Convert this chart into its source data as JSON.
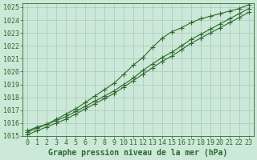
{
  "title": "Graphe pression niveau de la mer (hPa)",
  "x_values": [
    0,
    1,
    2,
    3,
    4,
    5,
    6,
    7,
    8,
    9,
    10,
    11,
    12,
    13,
    14,
    15,
    16,
    17,
    18,
    19,
    20,
    21,
    22,
    23
  ],
  "line1": [
    1015.4,
    1015.7,
    1015.9,
    1016.2,
    1016.5,
    1016.9,
    1017.3,
    1017.7,
    1018.1,
    1018.5,
    1019.0,
    1019.5,
    1020.1,
    1020.6,
    1021.1,
    1021.5,
    1022.0,
    1022.5,
    1022.9,
    1023.3,
    1023.7,
    1024.1,
    1024.5,
    1024.9
  ],
  "line2_marked": [
    1015.3,
    1015.6,
    1015.9,
    1016.3,
    1016.7,
    1017.1,
    1017.6,
    1018.1,
    1018.6,
    1019.1,
    1019.8,
    1020.5,
    1021.1,
    1021.9,
    1022.6,
    1023.1,
    1023.4,
    1023.8,
    1024.1,
    1024.3,
    1024.5,
    1024.7,
    1024.9,
    1025.2
  ],
  "line3": [
    1015.1,
    1015.4,
    1015.7,
    1016.0,
    1016.3,
    1016.7,
    1017.1,
    1017.5,
    1017.9,
    1018.3,
    1018.8,
    1019.3,
    1019.8,
    1020.3,
    1020.8,
    1021.2,
    1021.7,
    1022.2,
    1022.6,
    1023.0,
    1023.4,
    1023.8,
    1024.2,
    1024.6
  ],
  "line_color": "#2d6a2d",
  "bg_color": "#cce8d8",
  "grid_color": "#a8c8b8",
  "ylim": [
    1015,
    1025
  ],
  "ylim_max_display": 1025,
  "yticks": [
    1015,
    1016,
    1017,
    1018,
    1019,
    1020,
    1021,
    1022,
    1023,
    1024,
    1025
  ],
  "xticks": [
    0,
    1,
    2,
    3,
    4,
    5,
    6,
    7,
    8,
    9,
    10,
    11,
    12,
    13,
    14,
    15,
    16,
    17,
    18,
    19,
    20,
    21,
    22,
    23
  ],
  "label_fontsize": 6.0,
  "title_fontsize": 7.0,
  "marker": "+",
  "marker_size": 4.0,
  "linewidth": 0.8
}
